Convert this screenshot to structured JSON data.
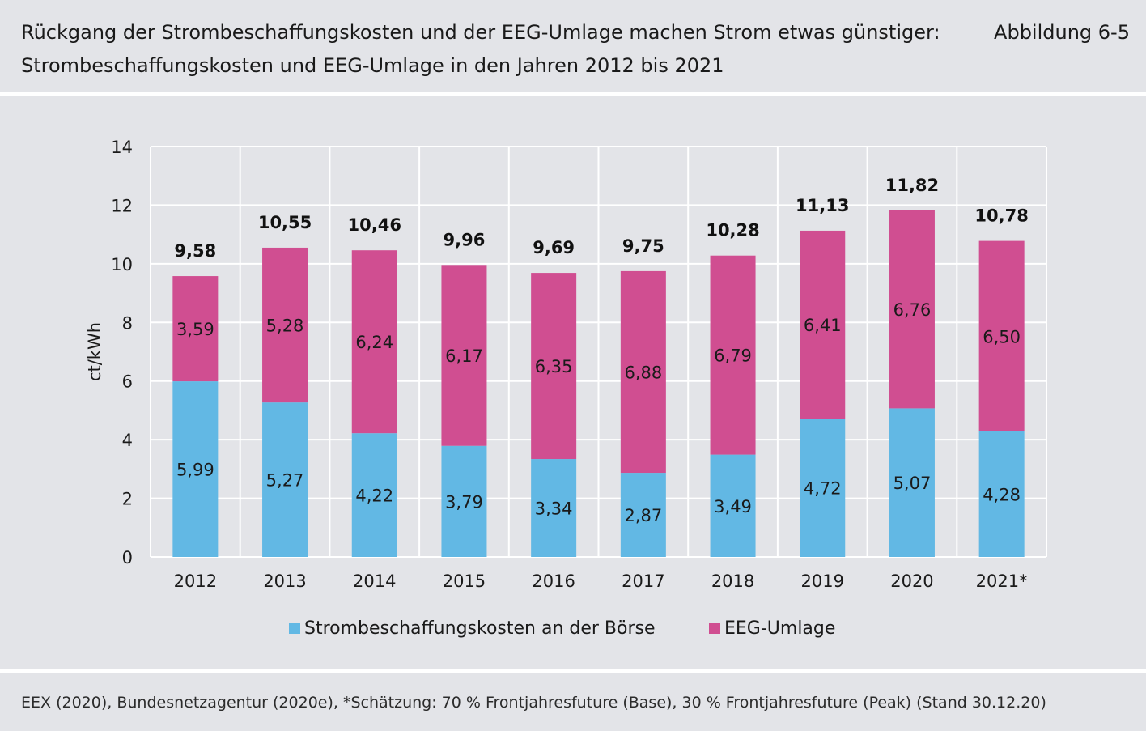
{
  "header": {
    "title_line1": "Rückgang der Strombeschaffungskosten und der EEG-Umlage machen Strom etwas günstiger:",
    "title_line2": "Strombeschaffungskosten und EEG-Umlage in den Jahren 2012 bis 2021",
    "figure_label": "Abbildung 6-5"
  },
  "footer": {
    "source": "EEX (2020), Bundesnetzagentur (2020e), *Schätzung: 70 % Frontjahresfuture (Base), 30 % Frontjahresfuture (Peak) (Stand 30.12.20)"
  },
  "colors": {
    "background": "#e3e4e8",
    "borse": "#62b8e4",
    "eeg": "#d04e91",
    "grid": "#ffffff"
  },
  "chart_data": {
    "type": "bar",
    "stacked": true,
    "categories": [
      "2012",
      "2013",
      "2014",
      "2015",
      "2016",
      "2017",
      "2018",
      "2019",
      "2020",
      "2021*"
    ],
    "series": [
      {
        "name": "Strombeschaffungskosten an der Börse",
        "color": "#62b8e4",
        "values": [
          5.99,
          5.27,
          4.22,
          3.79,
          3.34,
          2.87,
          3.49,
          4.72,
          5.07,
          4.28
        ],
        "labels": [
          "5,99",
          "5,27",
          "4,22",
          "3,79",
          "3,34",
          "2,87",
          "3,49",
          "4,72",
          "5,07",
          "4,28"
        ]
      },
      {
        "name": "EEG-Umlage",
        "color": "#d04e91",
        "values": [
          3.59,
          5.28,
          6.24,
          6.17,
          6.35,
          6.88,
          6.79,
          6.41,
          6.76,
          6.5
        ],
        "labels": [
          "3,59",
          "5,28",
          "6,24",
          "6,17",
          "6,35",
          "6,88",
          "6,79",
          "6,41",
          "6,76",
          "6,50"
        ]
      }
    ],
    "totals": [
      9.58,
      10.55,
      10.46,
      9.96,
      9.69,
      9.75,
      10.28,
      11.13,
      11.82,
      10.78
    ],
    "total_labels": [
      "9,58",
      "10,55",
      "10,46",
      "9,96",
      "9,69",
      "9,75",
      "10,28",
      "11,13",
      "11,82",
      "10,78"
    ],
    "ylabel": "ct/kWh",
    "xlabel": "",
    "ylim": [
      0,
      14
    ],
    "yticks": [
      "0",
      "2",
      "4",
      "6",
      "8",
      "10",
      "12",
      "14"
    ],
    "grid": true,
    "legend_position": "bottom"
  }
}
